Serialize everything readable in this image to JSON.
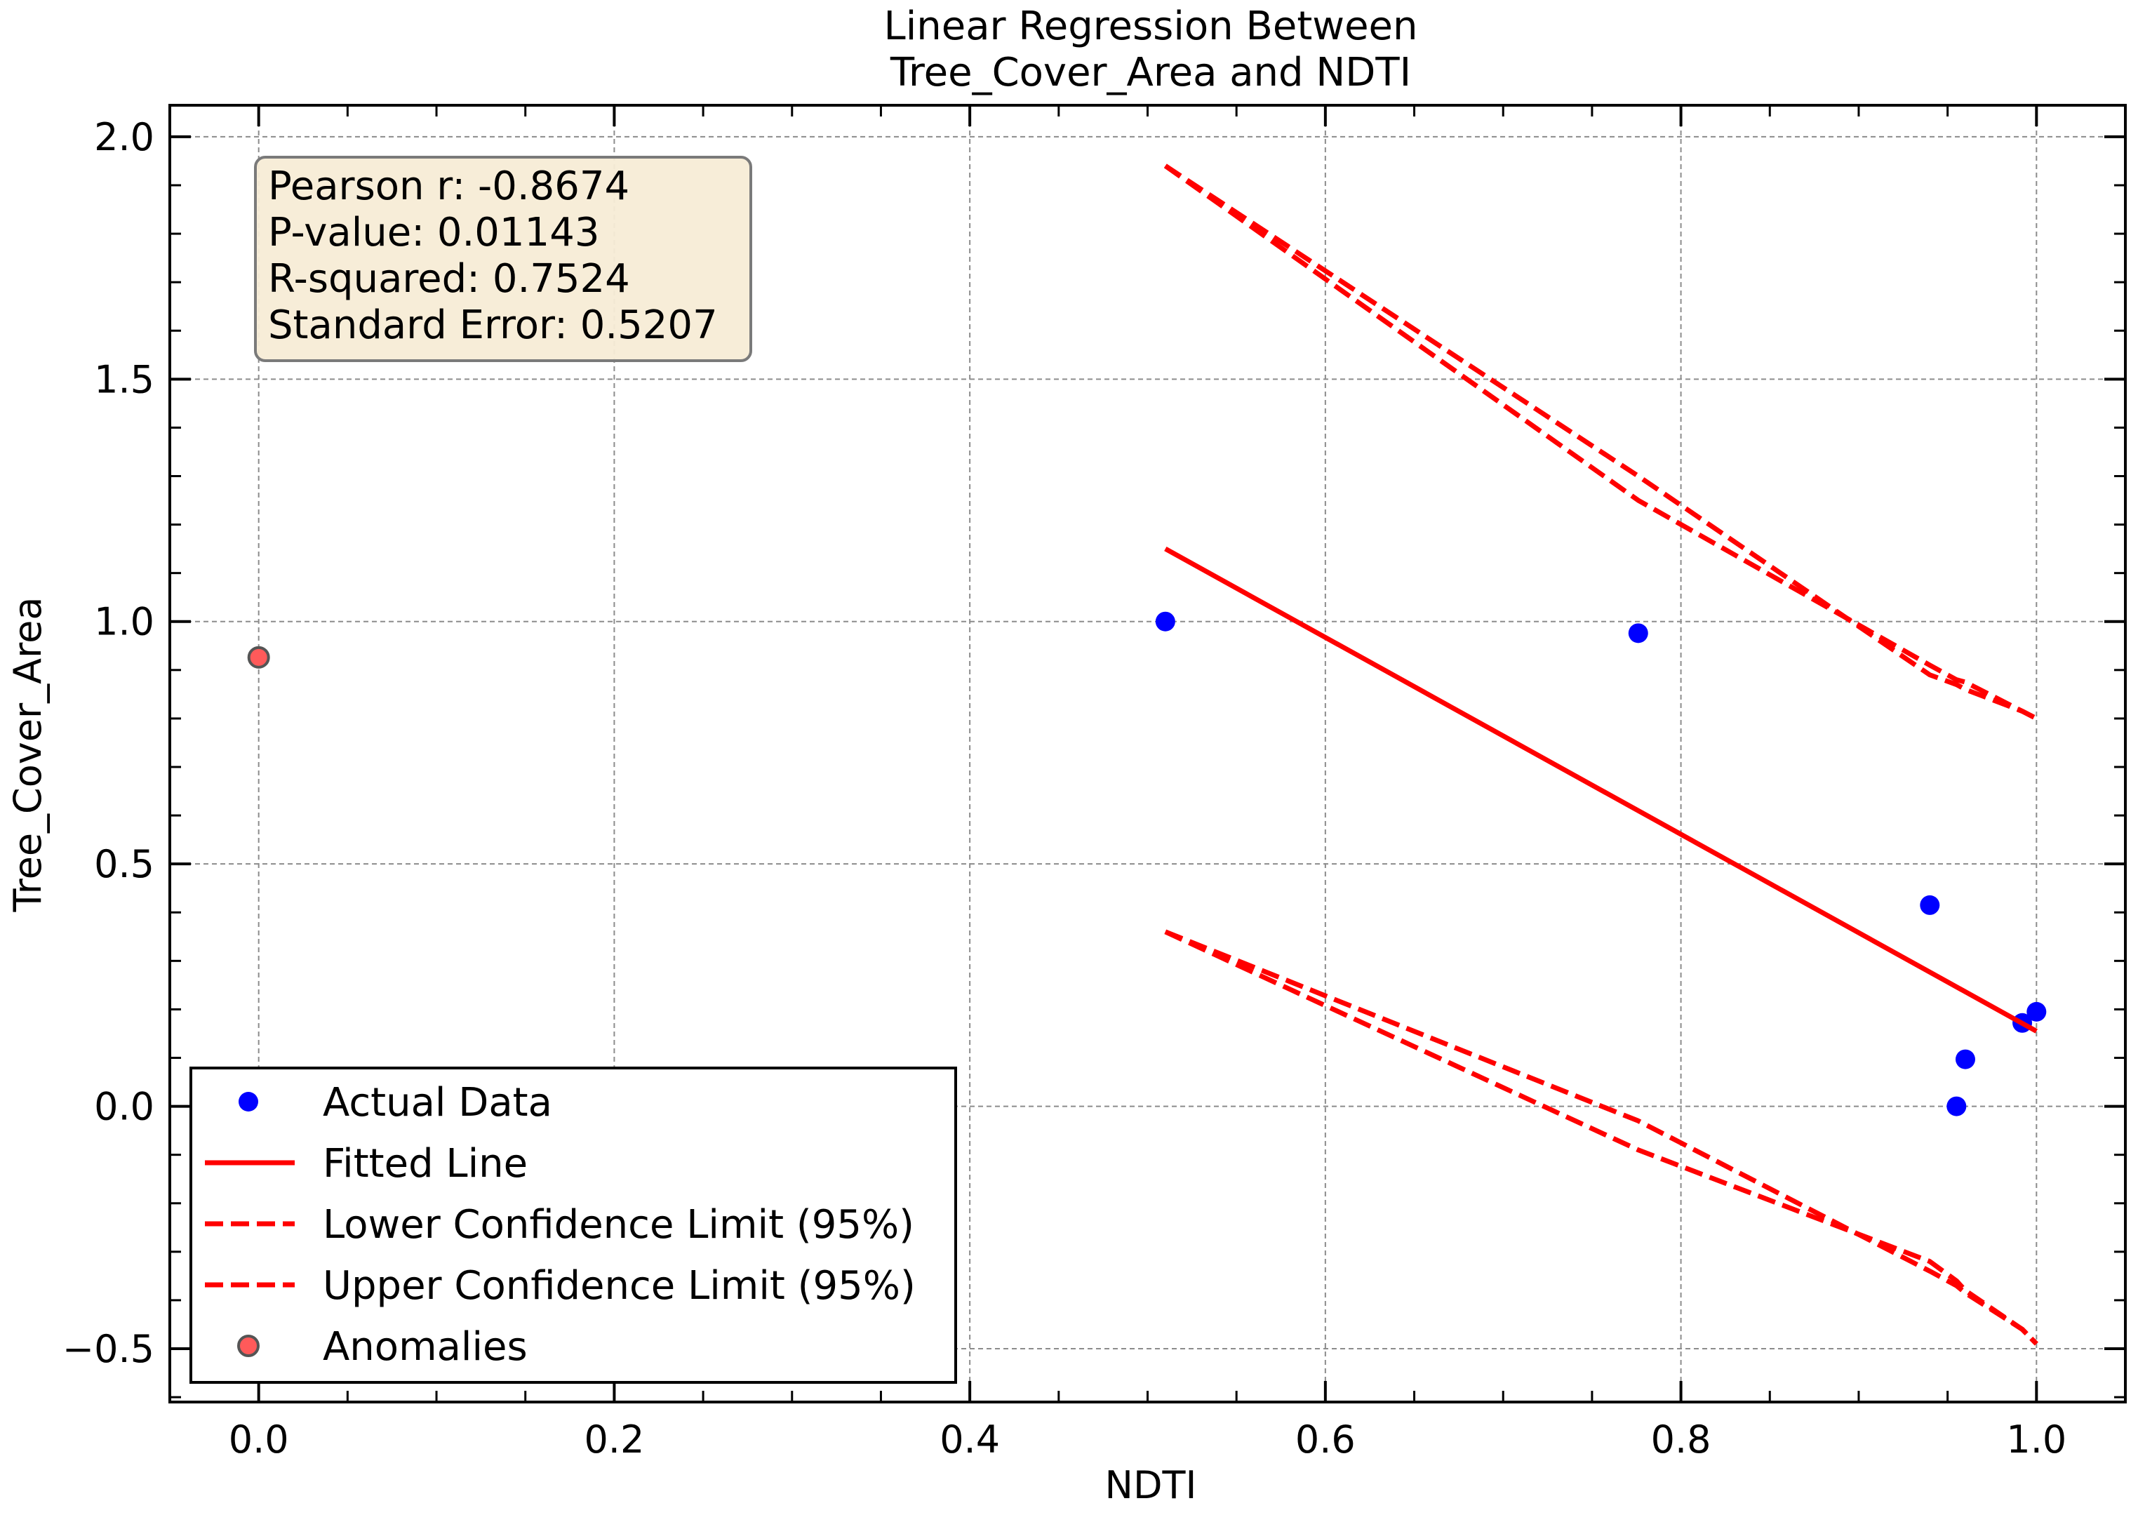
{
  "chart_data": {
    "type": "scatter",
    "title_lines": [
      "Linear Regression Between",
      "Tree_Cover_Area and NDTI"
    ],
    "xlabel": "NDTI",
    "ylabel": "Tree_Cover_Area",
    "xlim": [
      -0.05,
      1.05
    ],
    "ylim": [
      -0.61,
      2.065
    ],
    "xticks": [
      0.0,
      0.2,
      0.4,
      0.6,
      0.8,
      1.0
    ],
    "xtick_labels": [
      "0.0",
      "0.2",
      "0.4",
      "0.6",
      "0.8",
      "1.0"
    ],
    "yticks": [
      -0.5,
      0.0,
      0.5,
      1.0,
      1.5,
      2.0
    ],
    "ytick_labels": [
      "−0.5",
      "0.0",
      "0.5",
      "1.0",
      "1.5",
      "2.0"
    ],
    "grid": true,
    "legend_position": "lower-left",
    "stats_box": [
      "Pearson r: -0.8674",
      "P-value: 0.01143",
      "R-squared: 0.7524",
      "Standard Error: 0.5207"
    ],
    "series": [
      {
        "name": "Actual Data",
        "kind": "scatter",
        "color": "#0000ff",
        "points": [
          [
            0.51,
            1.0
          ],
          [
            0.776,
            0.976
          ],
          [
            0.94,
            0.415
          ],
          [
            0.955,
            0.0
          ],
          [
            0.96,
            0.097
          ],
          [
            0.992,
            0.172
          ],
          [
            1.0,
            0.195
          ]
        ]
      },
      {
        "name": "Fitted Line",
        "kind": "line",
        "color": "#ff0000",
        "points": [
          [
            0.51,
            1.15
          ],
          [
            1.0,
            0.155
          ]
        ]
      },
      {
        "name": "Lower Confidence Limit (95%)",
        "kind": "dashed",
        "color": "#ff0000",
        "points": [
          [
            0.51,
            1.94
          ],
          [
            0.776,
            1.25
          ],
          [
            0.94,
            0.91
          ],
          [
            0.955,
            0.88
          ],
          [
            0.96,
            0.875
          ],
          [
            0.992,
            0.815
          ],
          [
            1.0,
            0.8
          ]
        ]
      },
      {
        "name": "Lower Confidence Limit (95%)",
        "kind": "dashed",
        "color": "#ff0000",
        "points": [
          [
            0.51,
            0.36
          ],
          [
            0.776,
            -0.03
          ],
          [
            0.94,
            -0.34
          ],
          [
            0.955,
            -0.37
          ],
          [
            0.96,
            -0.385
          ],
          [
            0.992,
            -0.46
          ],
          [
            1.0,
            -0.49
          ]
        ]
      },
      {
        "name": "Upper Confidence Limit (95%)",
        "kind": "dashed",
        "color": "#ff0000",
        "points": [
          [
            0.51,
            1.94
          ],
          [
            0.776,
            1.3
          ],
          [
            0.94,
            0.89
          ],
          [
            0.955,
            0.87
          ],
          [
            0.96,
            0.86
          ],
          [
            0.992,
            0.815
          ],
          [
            1.0,
            0.8
          ]
        ]
      },
      {
        "name": "Upper Confidence Limit (95%)",
        "kind": "dashed",
        "color": "#ff0000",
        "points": [
          [
            0.51,
            0.36
          ],
          [
            0.776,
            -0.09
          ],
          [
            0.94,
            -0.32
          ],
          [
            0.955,
            -0.36
          ],
          [
            0.96,
            -0.38
          ],
          [
            0.992,
            -0.46
          ],
          [
            1.0,
            -0.49
          ]
        ]
      },
      {
        "name": "Anomalies",
        "kind": "scatter",
        "color": "#ff5a5a",
        "edgecolor": "#555555",
        "points": [
          [
            0.0,
            0.926
          ]
        ]
      }
    ],
    "legend": [
      {
        "label": "Actual Data",
        "kind": "scatter",
        "color": "#0000ff"
      },
      {
        "label": "Fitted Line",
        "kind": "line",
        "color": "#ff0000"
      },
      {
        "label": "Lower Confidence Limit (95%)",
        "kind": "dashed",
        "color": "#ff0000"
      },
      {
        "label": "Upper Confidence Limit (95%)",
        "kind": "dashed",
        "color": "#ff0000"
      },
      {
        "label": "Anomalies",
        "kind": "anomaly",
        "color": "#ff5a5a"
      }
    ]
  }
}
